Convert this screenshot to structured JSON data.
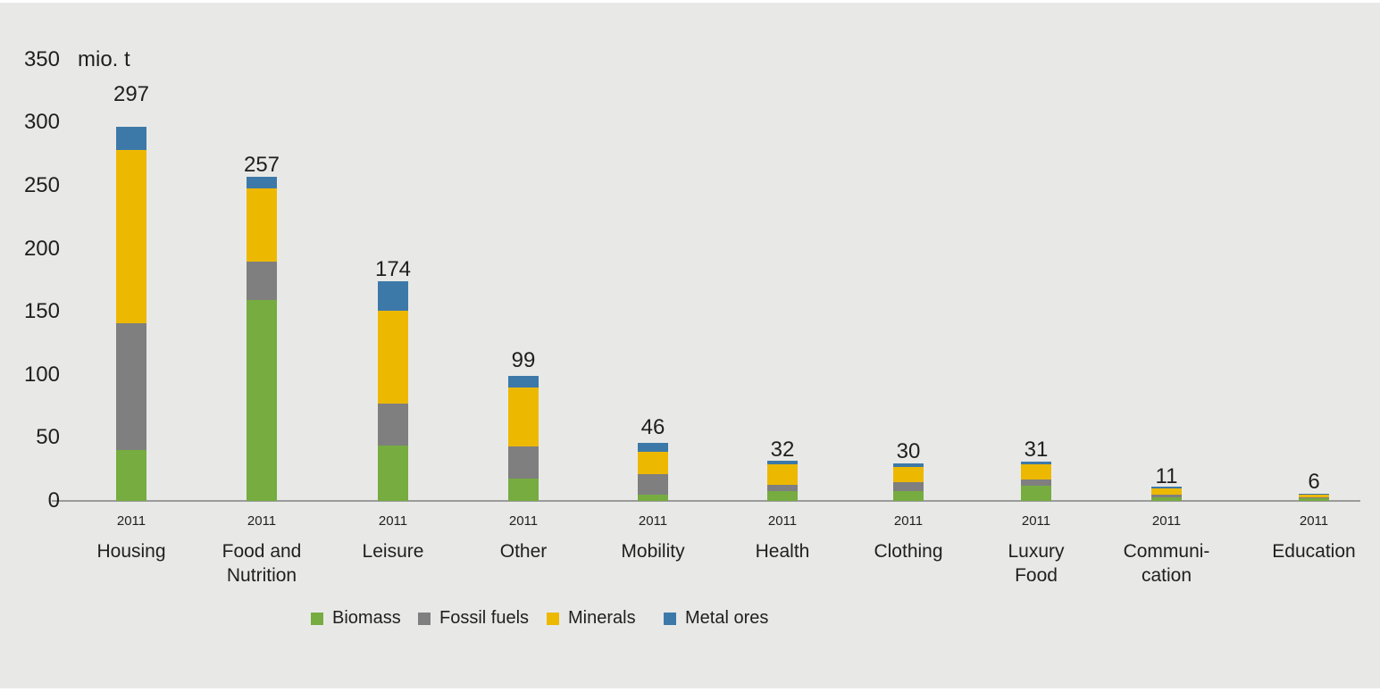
{
  "chart_data": {
    "type": "bar",
    "stacked": true,
    "title": "",
    "unit_label": "mio. t",
    "year_label": "2011",
    "ylim": [
      0,
      350
    ],
    "ytick_interval": 50,
    "yticks": [
      350,
      300,
      250,
      200,
      150,
      100,
      50,
      0
    ],
    "grid": false,
    "legend_position": "bottom",
    "categories": [
      [
        "Housing"
      ],
      [
        "Food and",
        "Nutrition"
      ],
      [
        "Leisure"
      ],
      [
        "Other"
      ],
      [
        "Mobility"
      ],
      [
        "Health"
      ],
      [
        "Clothing"
      ],
      [
        "Luxury",
        "Food"
      ],
      [
        "Communi-",
        "cation"
      ],
      [
        "Education"
      ]
    ],
    "totals": [
      297,
      257,
      174,
      99,
      46,
      32,
      30,
      31,
      11,
      6
    ],
    "series": [
      {
        "name": "Biomass",
        "color": "#76AC40",
        "values": [
          40,
          159,
          44,
          18,
          5,
          8,
          8,
          12,
          3,
          2
        ]
      },
      {
        "name": "Fossil fuels",
        "color": "#7F7F7F",
        "values": [
          101,
          31,
          33,
          25,
          16,
          5,
          7,
          5,
          2,
          1
        ]
      },
      {
        "name": "Minerals",
        "color": "#EDB800",
        "values": [
          137,
          58,
          74,
          47,
          18,
          16,
          12,
          12,
          5,
          2
        ]
      },
      {
        "name": "Metal ores",
        "color": "#3D79A8",
        "values": [
          19,
          9,
          23,
          9,
          7,
          3,
          3,
          2,
          1,
          1
        ]
      }
    ]
  },
  "colors": {
    "background": "#E8E9E7",
    "axis_line": "#9B9B9B",
    "text": "#1F1F1F",
    "border_strip": "#FFFFFF"
  }
}
